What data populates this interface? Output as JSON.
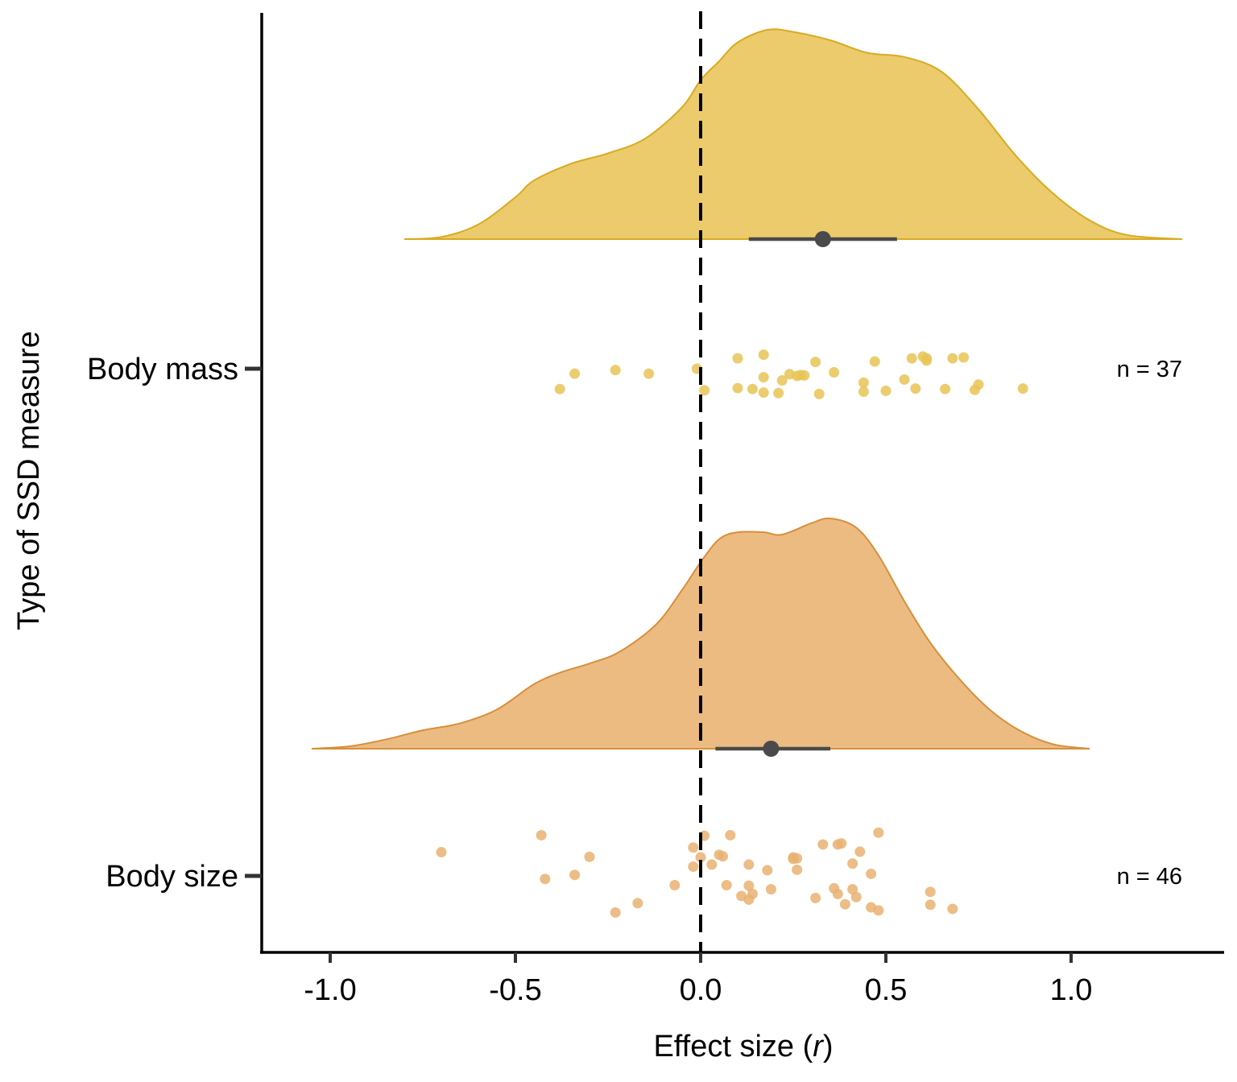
{
  "chart_data": {
    "type": "raincloud",
    "xlabel_prefix": "Effect size (",
    "xlabel_var": "r",
    "xlabel_suffix": ")",
    "ylabel": "Type of SSD measure",
    "xlim": [
      -1.18,
      1.41
    ],
    "xticks": [
      -1.0,
      -0.5,
      0.0,
      0.5,
      1.0
    ],
    "xtick_labels": [
      "-1.0",
      "-0.5",
      "0.0",
      "0.5",
      "1.0"
    ],
    "reference_line": 0.0,
    "series": [
      {
        "name": "Body mass",
        "n_label": "n = 37",
        "fill": "#e8c456",
        "stroke": "#d9aa22",
        "point_color": "#e8c456",
        "density_range": [
          -0.8,
          1.3
        ],
        "density": [
          [
            -0.8,
            0.0
          ],
          [
            -0.7,
            0.01
          ],
          [
            -0.6,
            0.07
          ],
          [
            -0.5,
            0.2
          ],
          [
            -0.45,
            0.28
          ],
          [
            -0.35,
            0.36
          ],
          [
            -0.25,
            0.41
          ],
          [
            -0.15,
            0.48
          ],
          [
            -0.05,
            0.63
          ],
          [
            0.0,
            0.76
          ],
          [
            0.05,
            0.85
          ],
          [
            0.1,
            0.94
          ],
          [
            0.18,
            1.0
          ],
          [
            0.25,
            0.99
          ],
          [
            0.35,
            0.95
          ],
          [
            0.45,
            0.89
          ],
          [
            0.55,
            0.87
          ],
          [
            0.65,
            0.8
          ],
          [
            0.75,
            0.62
          ],
          [
            0.85,
            0.4
          ],
          [
            0.95,
            0.22
          ],
          [
            1.05,
            0.09
          ],
          [
            1.15,
            0.02
          ],
          [
            1.3,
            0.0
          ]
        ],
        "density_scale_max": 0.32,
        "mean": 0.33,
        "ci": [
          0.13,
          0.53
        ],
        "points": [
          [
            -0.38,
            0.45
          ],
          [
            -0.34,
            0.11
          ],
          [
            -0.23,
            0.03
          ],
          [
            -0.14,
            0.11
          ],
          [
            -0.01,
            0.0
          ],
          [
            0.01,
            0.48
          ],
          [
            0.1,
            0.43
          ],
          [
            0.1,
            -0.23
          ],
          [
            0.14,
            0.45
          ],
          [
            0.17,
            0.19
          ],
          [
            0.17,
            -0.31
          ],
          [
            0.17,
            0.53
          ],
          [
            0.21,
            0.54
          ],
          [
            0.22,
            0.26
          ],
          [
            0.24,
            0.12
          ],
          [
            0.26,
            0.16
          ],
          [
            0.28,
            0.15
          ],
          [
            0.31,
            -0.15
          ],
          [
            0.32,
            0.56
          ],
          [
            0.36,
            0.08
          ],
          [
            0.44,
            0.51
          ],
          [
            0.44,
            0.31
          ],
          [
            0.47,
            -0.16
          ],
          [
            0.5,
            0.49
          ],
          [
            0.55,
            0.24
          ],
          [
            0.57,
            -0.23
          ],
          [
            0.58,
            0.44
          ],
          [
            0.6,
            -0.27
          ],
          [
            0.61,
            -0.23
          ],
          [
            0.61,
            -0.18
          ],
          [
            0.66,
            0.45
          ],
          [
            0.68,
            -0.23
          ],
          [
            0.71,
            -0.25
          ],
          [
            0.74,
            0.47
          ],
          [
            0.75,
            0.35
          ],
          [
            0.87,
            0.44
          ],
          [
            0.27,
            0.14
          ]
        ]
      },
      {
        "name": "Body size",
        "n_label": "n = 46",
        "fill": "#e9b271",
        "stroke": "#d98e3a",
        "point_color": "#e9b271",
        "density_range": [
          -1.05,
          1.05
        ],
        "density": [
          [
            -1.05,
            0.0
          ],
          [
            -0.95,
            0.01
          ],
          [
            -0.85,
            0.04
          ],
          [
            -0.75,
            0.08
          ],
          [
            -0.65,
            0.11
          ],
          [
            -0.55,
            0.17
          ],
          [
            -0.45,
            0.28
          ],
          [
            -0.38,
            0.33
          ],
          [
            -0.3,
            0.37
          ],
          [
            -0.22,
            0.42
          ],
          [
            -0.12,
            0.54
          ],
          [
            -0.05,
            0.69
          ],
          [
            0.0,
            0.81
          ],
          [
            0.05,
            0.91
          ],
          [
            0.1,
            0.94
          ],
          [
            0.17,
            0.94
          ],
          [
            0.22,
            0.93
          ],
          [
            0.3,
            0.98
          ],
          [
            0.35,
            1.0
          ],
          [
            0.42,
            0.96
          ],
          [
            0.48,
            0.84
          ],
          [
            0.55,
            0.64
          ],
          [
            0.62,
            0.46
          ],
          [
            0.7,
            0.3
          ],
          [
            0.78,
            0.17
          ],
          [
            0.86,
            0.08
          ],
          [
            0.95,
            0.02
          ],
          [
            1.05,
            0.0
          ]
        ],
        "density_scale_max": 0.32,
        "mean": 0.19,
        "ci": [
          0.04,
          0.35
        ],
        "points": [
          [
            -0.7,
            -0.46
          ],
          [
            -0.43,
            -0.79
          ],
          [
            -0.42,
            0.06
          ],
          [
            -0.34,
            -0.02
          ],
          [
            -0.3,
            -0.37
          ],
          [
            -0.23,
            0.71
          ],
          [
            -0.17,
            0.53
          ],
          [
            -0.07,
            0.18
          ],
          [
            -0.02,
            -0.55
          ],
          [
            0.0,
            -0.36
          ],
          [
            0.01,
            -0.78
          ],
          [
            0.03,
            -0.22
          ],
          [
            0.05,
            -0.41
          ],
          [
            0.06,
            -0.38
          ],
          [
            0.07,
            0.18
          ],
          [
            0.08,
            -0.79
          ],
          [
            0.11,
            0.39
          ],
          [
            0.13,
            0.46
          ],
          [
            0.13,
            0.19
          ],
          [
            0.14,
            0.35
          ],
          [
            0.18,
            -0.11
          ],
          [
            0.25,
            -0.33
          ],
          [
            0.26,
            -0.34
          ],
          [
            0.26,
            -0.12
          ],
          [
            0.31,
            0.43
          ],
          [
            0.33,
            -0.61
          ],
          [
            0.36,
            0.24
          ],
          [
            0.37,
            0.35
          ],
          [
            0.38,
            -0.63
          ],
          [
            0.39,
            0.55
          ],
          [
            0.41,
            -0.24
          ],
          [
            0.42,
            0.41
          ],
          [
            0.43,
            -0.47
          ],
          [
            0.46,
            0.61
          ],
          [
            0.46,
            -0.04
          ],
          [
            0.48,
            -0.84
          ],
          [
            0.48,
            0.67
          ],
          [
            0.62,
            0.31
          ],
          [
            0.62,
            0.56
          ],
          [
            0.68,
            0.64
          ],
          [
            0.25,
            -0.36
          ],
          [
            0.37,
            -0.61
          ],
          [
            0.13,
            -0.22
          ],
          [
            0.19,
            0.26
          ],
          [
            0.41,
            0.26
          ],
          [
            -0.02,
            -0.18
          ]
        ]
      }
    ]
  }
}
